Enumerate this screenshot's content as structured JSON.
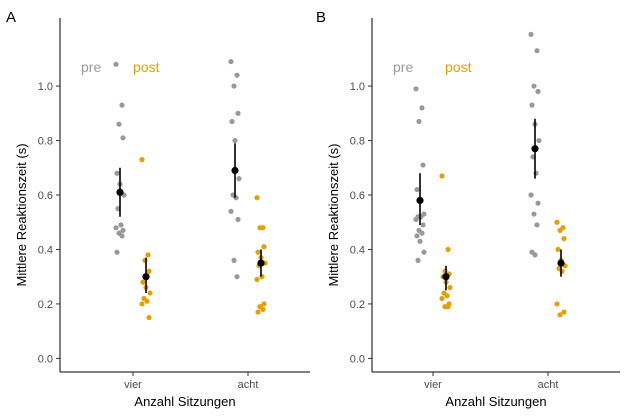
{
  "chart_data": [
    {
      "type": "scatter",
      "panel_label": "A",
      "ylabel": "Mittlere Reaktionszeit (s)",
      "xlabel": "Anzahl Sitzungen",
      "categories": [
        "vier",
        "acht"
      ],
      "ylim": [
        -0.05,
        1.25
      ],
      "yticks": [
        0.0,
        0.2,
        0.4,
        0.6,
        0.8,
        1.0
      ],
      "ytick_labels": [
        "0.0",
        "0.2",
        "0.4",
        "0.6",
        "0.8",
        "1.0"
      ],
      "grid": false,
      "legend_placement": "top-left",
      "series": [
        {
          "name": "pre",
          "color": "#999999",
          "points": [
            {
              "x": "vier",
              "values": [
                1.08,
                0.93,
                0.86,
                0.81,
                0.68,
                0.64,
                0.6,
                0.55,
                0.49,
                0.48,
                0.47,
                0.46,
                0.45,
                0.39
              ]
            },
            {
              "x": "acht",
              "values": [
                1.09,
                1.04,
                1.0,
                0.9,
                0.87,
                0.8,
                0.66,
                0.6,
                0.59,
                0.54,
                0.51,
                0.36,
                0.3
              ]
            }
          ],
          "summary": [
            {
              "x": "vier",
              "mean": 0.61,
              "low": 0.52,
              "high": 0.7
            },
            {
              "x": "acht",
              "mean": 0.69,
              "low": 0.59,
              "high": 0.79
            }
          ]
        },
        {
          "name": "post",
          "color": "#E69F00",
          "points": [
            {
              "x": "vier",
              "values": [
                0.73,
                0.38,
                0.36,
                0.32,
                0.28,
                0.26,
                0.24,
                0.22,
                0.21,
                0.2,
                0.15
              ]
            },
            {
              "x": "acht",
              "values": [
                0.59,
                0.48,
                0.48,
                0.41,
                0.39,
                0.37,
                0.35,
                0.34,
                0.3,
                0.29,
                0.2,
                0.19,
                0.18,
                0.17
              ]
            }
          ],
          "summary": [
            {
              "x": "vier",
              "mean": 0.3,
              "low": 0.24,
              "high": 0.37
            },
            {
              "x": "acht",
              "mean": 0.35,
              "low": 0.3,
              "high": 0.4
            }
          ]
        }
      ]
    },
    {
      "type": "scatter",
      "panel_label": "B",
      "ylabel": "Mittlere Reaktionszeit (s)",
      "xlabel": "Anzahl Sitzungen",
      "categories": [
        "vier",
        "acht"
      ],
      "ylim": [
        -0.05,
        1.25
      ],
      "yticks": [
        0.0,
        0.2,
        0.4,
        0.6,
        0.8,
        1.0
      ],
      "ytick_labels": [
        "0.0",
        "0.2",
        "0.4",
        "0.6",
        "0.8",
        "1.0"
      ],
      "grid": false,
      "legend_placement": "top-left",
      "series": [
        {
          "name": "pre",
          "color": "#999999",
          "points": [
            {
              "x": "vier",
              "values": [
                0.99,
                0.92,
                0.87,
                0.71,
                0.62,
                0.58,
                0.53,
                0.52,
                0.52,
                0.51,
                0.49,
                0.47,
                0.46,
                0.45,
                0.43,
                0.39,
                0.36
              ]
            },
            {
              "x": "acht",
              "values": [
                1.19,
                1.13,
                1.0,
                0.98,
                0.93,
                0.86,
                0.8,
                0.74,
                0.68,
                0.6,
                0.57,
                0.53,
                0.49,
                0.39,
                0.38
              ]
            }
          ],
          "summary": [
            {
              "x": "vier",
              "mean": 0.58,
              "low": 0.49,
              "high": 0.68
            },
            {
              "x": "acht",
              "mean": 0.77,
              "low": 0.66,
              "high": 0.88
            }
          ]
        },
        {
          "name": "post",
          "color": "#E69F00",
          "points": [
            {
              "x": "vier",
              "values": [
                0.67,
                0.4,
                0.32,
                0.31,
                0.3,
                0.28,
                0.26,
                0.24,
                0.23,
                0.22,
                0.2,
                0.19,
                0.19
              ]
            },
            {
              "x": "acht",
              "values": [
                0.5,
                0.48,
                0.47,
                0.44,
                0.4,
                0.36,
                0.34,
                0.33,
                0.32,
                0.2,
                0.17,
                0.16
              ]
            }
          ],
          "summary": [
            {
              "x": "vier",
              "mean": 0.3,
              "low": 0.25,
              "high": 0.34
            },
            {
              "x": "acht",
              "mean": 0.35,
              "low": 0.3,
              "high": 0.4
            }
          ]
        }
      ]
    }
  ]
}
